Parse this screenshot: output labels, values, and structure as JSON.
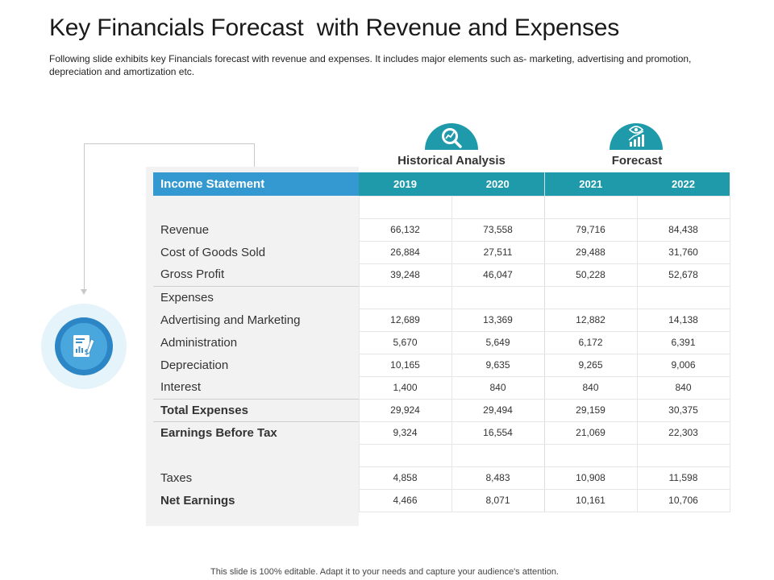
{
  "header": {
    "title": "Key Financials Forecast  with Revenue and Expenses",
    "subtitle": "Following slide exhibits key Financials forecast with revenue  and expenses. It includes major elements such as- marketing, advertising and promotion, depreciation and amortization etc."
  },
  "groups": {
    "historical": {
      "label": "Historical Analysis",
      "icon": "magnifier-chart-icon"
    },
    "forecast": {
      "label": "Forecast",
      "icon": "eye-bar-chart-icon"
    }
  },
  "badge": {
    "icon": "financial-report-icon"
  },
  "table": {
    "header_label": "Income Statement",
    "years": [
      "2019",
      "2020",
      "2021",
      "2022"
    ],
    "rows": [
      {
        "label": "",
        "values": [
          "",
          "",
          "",
          ""
        ]
      },
      {
        "label": "Revenue",
        "values": [
          "66,132",
          "73,558",
          "79,716",
          "84,438"
        ]
      },
      {
        "label": "Cost of Goods Sold",
        "values": [
          "26,884",
          "27,511",
          "29,488",
          "31,760"
        ]
      },
      {
        "label": "Gross Profit",
        "values": [
          "39,248",
          "46,047",
          "50,228",
          "52,678"
        ]
      },
      {
        "label": "Expenses",
        "values": [
          "",
          "",
          "",
          ""
        ]
      },
      {
        "label": "Advertising and Marketing",
        "values": [
          "12,689",
          "13,369",
          "12,882",
          "14,138"
        ]
      },
      {
        "label": "Administration",
        "values": [
          "5,670",
          "5,649",
          "6,172",
          "6,391"
        ]
      },
      {
        "label": "Depreciation",
        "values": [
          "10,165",
          "9,635",
          "9,265",
          "9,006"
        ]
      },
      {
        "label": "Interest",
        "values": [
          "1,400",
          "840",
          "840",
          "840"
        ]
      },
      {
        "label": "Total Expenses",
        "values": [
          "29,924",
          "29,494",
          "29,159",
          "30,375"
        ]
      },
      {
        "label": "Earnings Before Tax",
        "values": [
          "9,324",
          "16,554",
          "21,069",
          "22,303"
        ]
      },
      {
        "label": "",
        "values": [
          "",
          "",
          "",
          ""
        ]
      },
      {
        "label": "Taxes",
        "values": [
          "4,858",
          "8,483",
          "10,908",
          "11,598"
        ]
      },
      {
        "label": "Net Earnings",
        "values": [
          "4,466",
          "8,071",
          "10,161",
          "10,706"
        ]
      }
    ]
  },
  "colors": {
    "teal": "#1f9aaa",
    "blue": "#3498d1",
    "panel": "#f2f2f2"
  },
  "footer": {
    "text": "This slide is 100% editable. Adapt it to your needs and capture your audience's attention."
  }
}
